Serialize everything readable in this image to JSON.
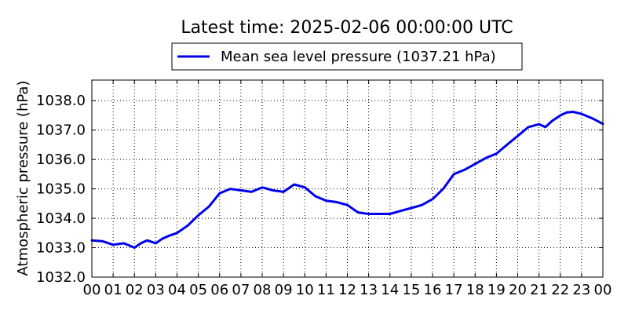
{
  "chart_data": {
    "type": "line",
    "title": "Latest time: 2025-02-06 00:00:00 UTC",
    "xlabel": "",
    "ylabel": "Atmospheric pressure (hPa)",
    "xlim": [
      0,
      24
    ],
    "ylim": [
      1032.0,
      1038.7
    ],
    "x_ticks": [
      0,
      1,
      2,
      3,
      4,
      5,
      6,
      7,
      8,
      9,
      10,
      11,
      12,
      13,
      14,
      15,
      16,
      17,
      18,
      19,
      20,
      21,
      22,
      23,
      24
    ],
    "x_tick_labels": [
      "00",
      "01",
      "02",
      "03",
      "04",
      "05",
      "06",
      "07",
      "08",
      "09",
      "10",
      "11",
      "12",
      "13",
      "14",
      "15",
      "16",
      "17",
      "18",
      "19",
      "20",
      "21",
      "22",
      "23",
      "00"
    ],
    "y_ticks": [
      1032.0,
      1033.0,
      1034.0,
      1035.0,
      1036.0,
      1037.0,
      1038.0
    ],
    "y_tick_labels": [
      "1032.0",
      "1033.0",
      "1034.0",
      "1035.0",
      "1036.0",
      "1037.0",
      "1038.0"
    ],
    "grid": true,
    "legend_position": "top-center",
    "colors": {
      "line": "#0000ee"
    },
    "series": [
      {
        "name": "Mean sea level pressure (1037.21 hPa)",
        "x": [
          0,
          0.5,
          1,
          1.5,
          2,
          2.3,
          2.6,
          3,
          3.3,
          3.6,
          4,
          4.5,
          5,
          5.5,
          6,
          6.5,
          7,
          7.5,
          8,
          8.5,
          9,
          9.5,
          10,
          10.5,
          11,
          11.5,
          12,
          12.5,
          13,
          13.5,
          14,
          14.5,
          15,
          15.5,
          16,
          16.5,
          17,
          17.5,
          18,
          18.5,
          19,
          19.5,
          20,
          20.5,
          21,
          21.3,
          21.6,
          22,
          22.3,
          22.6,
          23,
          23.5,
          24
        ],
        "y": [
          1033.25,
          1033.22,
          1033.1,
          1033.15,
          1033.0,
          1033.15,
          1033.25,
          1033.15,
          1033.3,
          1033.4,
          1033.5,
          1033.75,
          1034.1,
          1034.4,
          1034.85,
          1035.0,
          1034.95,
          1034.9,
          1035.05,
          1034.95,
          1034.9,
          1035.15,
          1035.05,
          1034.75,
          1034.6,
          1034.55,
          1034.45,
          1034.2,
          1034.15,
          1034.15,
          1034.15,
          1034.25,
          1034.35,
          1034.45,
          1034.65,
          1035.0,
          1035.5,
          1035.65,
          1035.85,
          1036.05,
          1036.2,
          1036.5,
          1036.8,
          1037.1,
          1037.2,
          1037.1,
          1037.3,
          1037.5,
          1037.6,
          1037.62,
          1037.55,
          1037.4,
          1037.21
        ]
      }
    ]
  }
}
